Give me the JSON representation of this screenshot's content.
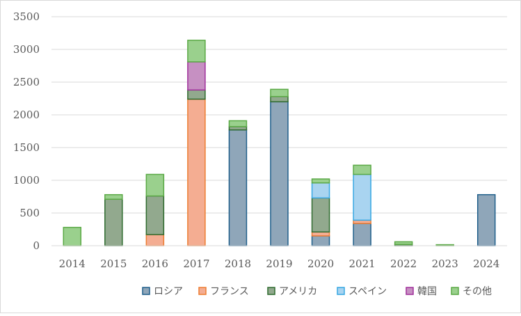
{
  "chart_data": {
    "type": "bar",
    "stacked": true,
    "title": "",
    "xlabel": "",
    "ylabel": "",
    "categories": [
      "2014",
      "2015",
      "2016",
      "2017",
      "2018",
      "2019",
      "2020",
      "2021",
      "2022",
      "2023",
      "2024"
    ],
    "ylim": [
      0,
      3500
    ],
    "yticks": [
      0,
      500,
      1000,
      1500,
      2000,
      2500,
      3000,
      3500
    ],
    "grid": true,
    "legend_position": "bottom-right",
    "series": [
      {
        "name": "ロシア",
        "color": "#8fa6b9",
        "edge": "#1f5f8b",
        "values": [
          0,
          0,
          0,
          0,
          1770,
          2200,
          150,
          340,
          0,
          0,
          780
        ]
      },
      {
        "name": "フランス",
        "color": "#f4ad92",
        "edge": "#ed7d31",
        "values": [
          0,
          0,
          170,
          2240,
          0,
          0,
          60,
          50,
          0,
          0,
          0
        ]
      },
      {
        "name": "アメリカ",
        "color": "#92a98e",
        "edge": "#2e6b2e",
        "values": [
          0,
          710,
          590,
          140,
          50,
          80,
          520,
          0,
          20,
          0,
          0
        ]
      },
      {
        "name": "スペイン",
        "color": "#a9d4f0",
        "edge": "#35a7e2",
        "values": [
          0,
          0,
          0,
          0,
          0,
          0,
          230,
          700,
          0,
          0,
          0
        ]
      },
      {
        "name": "韓国",
        "color": "#c690c2",
        "edge": "#a0309b",
        "values": [
          0,
          0,
          0,
          430,
          0,
          0,
          0,
          0,
          0,
          0,
          0
        ]
      },
      {
        "name": "その他",
        "color": "#9ad08d",
        "edge": "#5aa945",
        "values": [
          280,
          70,
          330,
          330,
          90,
          110,
          60,
          140,
          40,
          15,
          0
        ]
      }
    ]
  }
}
